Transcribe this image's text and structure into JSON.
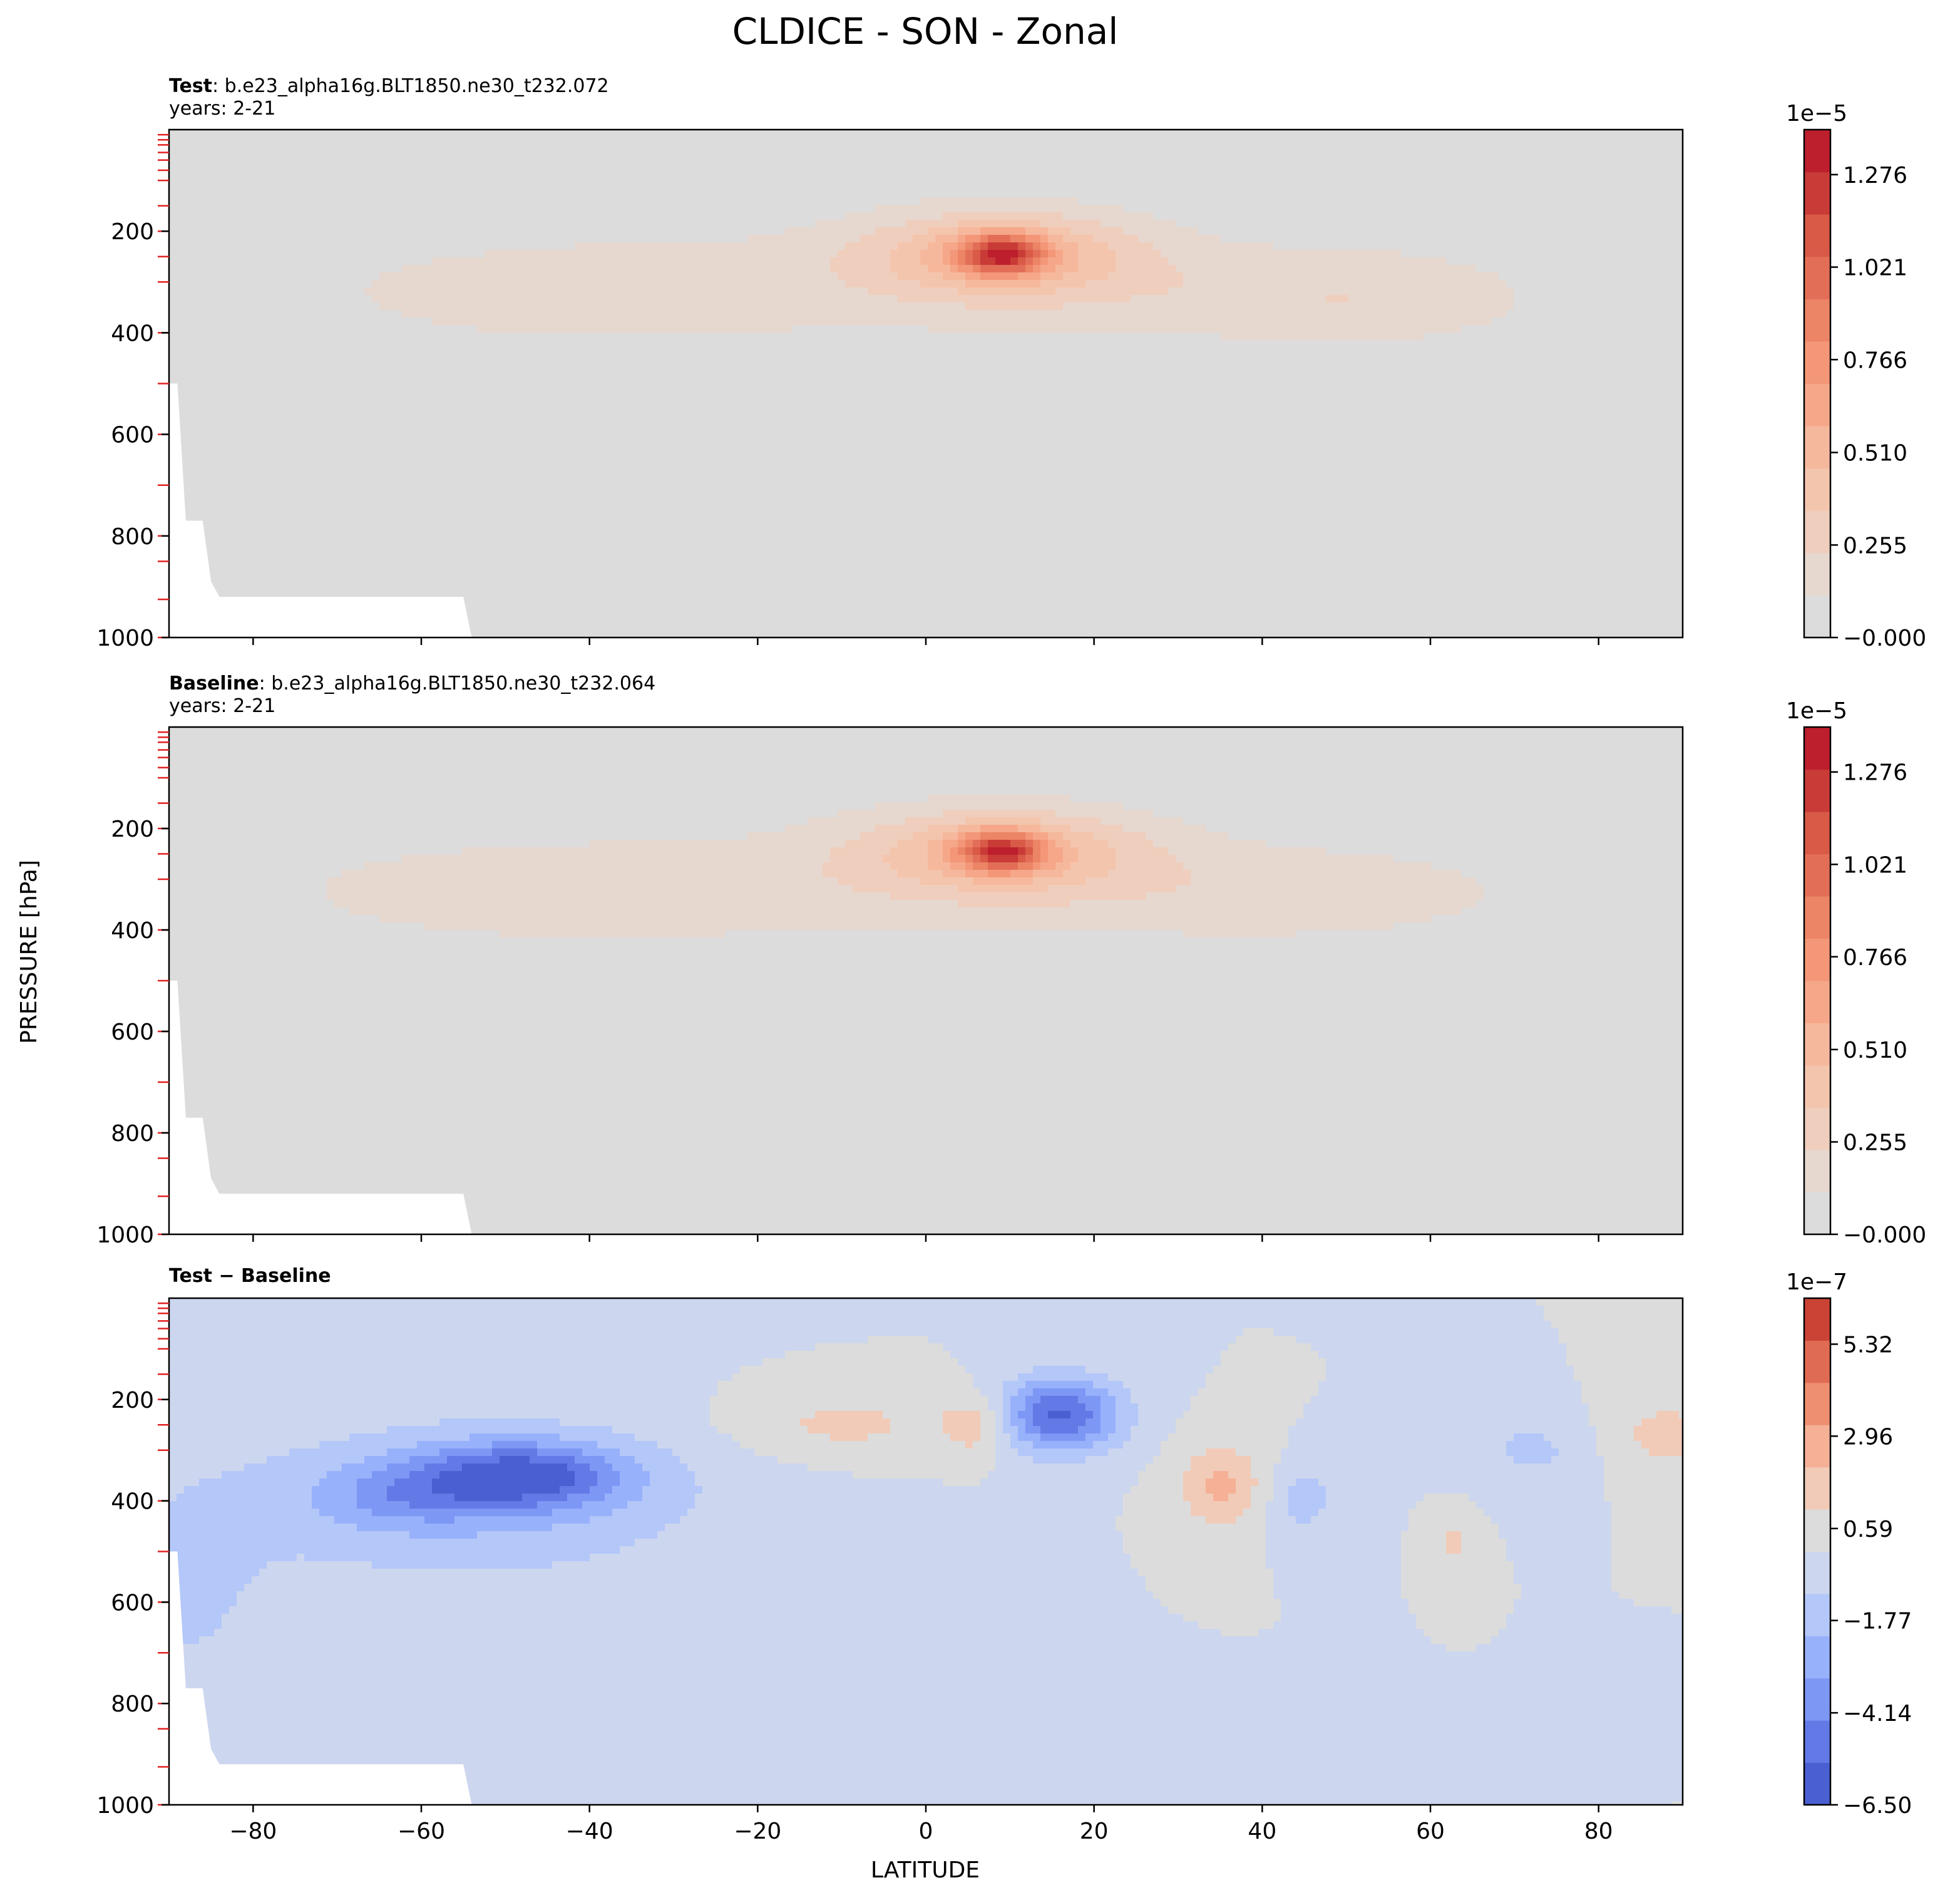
{
  "figure": {
    "title": "CLDICE - SON - Zonal",
    "ylabel": "PRESSURE [hPa]",
    "xlabel": "LATITUDE"
  },
  "chart_data": [
    {
      "type": "heatmap",
      "panel": "test",
      "title_bold": "Test",
      "title_rest": ": b.e23_alpha16g.BLT1850.ne30_t232.072",
      "subtitle": "years: 2-21",
      "xlim": [
        -90,
        90
      ],
      "ylim": [
        1000,
        0
      ],
      "x_ticks": [
        -80,
        -60,
        -40,
        -20,
        0,
        20,
        40,
        60,
        80
      ],
      "x_tick_labels": [],
      "y_ticks": [
        200,
        400,
        600,
        800,
        1000
      ],
      "y_tick_labels": [
        "200",
        "400",
        "600",
        "800",
        "1000"
      ],
      "colorbar": {
        "exponent": "1e−5",
        "vmin": 0,
        "vmax": 1.4,
        "ticks": [
          0,
          0.255,
          0.51,
          0.766,
          1.021,
          1.276
        ],
        "tick_labels": [
          "−0.000",
          "0.255",
          "0.510",
          "0.766",
          "1.021",
          "1.276"
        ],
        "colors": [
          "#dddcdc",
          "#e6d7cf",
          "#efcebd",
          "#f4c5ad",
          "#f6b89c",
          "#f6a789",
          "#f39778",
          "#ec8466",
          "#e36e57",
          "#d85a47",
          "#c93b37",
          "#bd1f2d"
        ]
      },
      "background_value": 0.02,
      "blobs": [
        {
          "lat": -12,
          "p": 300,
          "dlat": 64,
          "dp": 130,
          "amp": 0.12
        },
        {
          "lat": -42,
          "p": 330,
          "dlat": 26,
          "dp": 85,
          "amp": 0.1
        },
        {
          "lat": 45,
          "p": 330,
          "dlat": 28,
          "dp": 95,
          "amp": 0.12
        },
        {
          "lat": 55,
          "p": 340,
          "dlat": 15,
          "dp": 90,
          "amp": 0.06
        },
        {
          "lat": 9,
          "p": 245,
          "dlat": 16,
          "dp": 85,
          "amp": 0.45
        },
        {
          "lat": 9,
          "p": 245,
          "dlat": 5,
          "dp": 40,
          "amp": 0.85
        }
      ]
    },
    {
      "type": "heatmap",
      "panel": "baseline",
      "title_bold": "Baseline",
      "title_rest": ": b.e23_alpha16g.BLT1850.ne30_t232.064",
      "subtitle": "years: 2-21",
      "xlim": [
        -90,
        90
      ],
      "ylim": [
        1000,
        0
      ],
      "x_ticks": [
        -80,
        -60,
        -40,
        -20,
        0,
        20,
        40,
        60,
        80
      ],
      "x_tick_labels": [],
      "y_ticks": [
        200,
        400,
        600,
        800,
        1000
      ],
      "y_tick_labels": [
        "200",
        "400",
        "600",
        "800",
        "1000"
      ],
      "colorbar": {
        "exponent": "1e−5",
        "vmin": 0,
        "vmax": 1.4,
        "ticks": [
          0,
          0.255,
          0.51,
          0.766,
          1.021,
          1.276
        ],
        "tick_labels": [
          "−0.000",
          "0.255",
          "0.510",
          "0.766",
          "1.021",
          "1.276"
        ],
        "colors": [
          "#dddcdc",
          "#e6d7cf",
          "#efcebd",
          "#f4c5ad",
          "#f6b89c",
          "#f6a789",
          "#f39778",
          "#ec8466",
          "#e36e57",
          "#d85a47",
          "#c93b37",
          "#bd1f2d"
        ]
      },
      "background_value": 0.02,
      "blobs": [
        {
          "lat": -12,
          "p": 310,
          "dlat": 66,
          "dp": 135,
          "amp": 0.12
        },
        {
          "lat": -45,
          "p": 330,
          "dlat": 28,
          "dp": 85,
          "amp": 0.11
        },
        {
          "lat": 45,
          "p": 330,
          "dlat": 28,
          "dp": 95,
          "amp": 0.12
        },
        {
          "lat": 9,
          "p": 245,
          "dlat": 17,
          "dp": 85,
          "amp": 0.43
        },
        {
          "lat": 9,
          "p": 245,
          "dlat": 5,
          "dp": 40,
          "amp": 0.82
        }
      ]
    },
    {
      "type": "heatmap",
      "panel": "difference",
      "title_bold": "Test − Baseline",
      "xlim": [
        -90,
        90
      ],
      "ylim": [
        1000,
        0
      ],
      "x_ticks": [
        -80,
        -60,
        -40,
        -20,
        0,
        20,
        40,
        60,
        80
      ],
      "x_tick_labels": [
        "−80",
        "−60",
        "−40",
        "−20",
        "0",
        "20",
        "40",
        "60",
        "80"
      ],
      "y_ticks": [
        200,
        400,
        600,
        800,
        1000
      ],
      "y_tick_labels": [
        "200",
        "400",
        "600",
        "800",
        "1000"
      ],
      "colorbar": {
        "exponent": "1e−7",
        "vmin": -6.5,
        "vmax": 6.5,
        "ticks": [
          -6.5,
          -4.14,
          -1.77,
          0.59,
          2.96,
          5.32
        ],
        "tick_labels": [
          "−6.50",
          "−4.14",
          "−1.77",
          "0.59",
          "2.96",
          "5.32"
        ],
        "colors": [
          "#4a5fd2",
          "#6279e6",
          "#7d97f5",
          "#98b1fb",
          "#b4c7f9",
          "#ccd6ee",
          "#dcdcdc",
          "#f1cbb8",
          "#f5b096",
          "#ef8f71",
          "#e06b53",
          "#cb4335"
        ]
      },
      "background_value": 0.0,
      "blobs": [
        {
          "lat": -55,
          "p": 400,
          "dlat": 30,
          "dp": 165,
          "amp": -2.2
        },
        {
          "lat": -88,
          "p": 600,
          "dlat": 10,
          "dp": 220,
          "amp": -1.2
        },
        {
          "lat": -48,
          "p": 350,
          "dlat": 12,
          "dp": 65,
          "amp": -4.8
        },
        {
          "lat": -62,
          "p": 390,
          "dlat": 10,
          "dp": 60,
          "amp": -1.8
        },
        {
          "lat": 16,
          "p": 230,
          "dlat": 7,
          "dp": 75,
          "amp": -5.6
        },
        {
          "lat": 45,
          "p": 400,
          "dlat": 4,
          "dp": 70,
          "amp": -1.6
        },
        {
          "lat": 72,
          "p": 300,
          "dlat": 6,
          "dp": 65,
          "amp": -1.4
        },
        {
          "lat": -10,
          "p": 250,
          "dlat": 13,
          "dp": 70,
          "amp": 1.4
        },
        {
          "lat": 6,
          "p": 250,
          "dlat": 4,
          "dp": 60,
          "amp": 1.8
        },
        {
          "lat": 35,
          "p": 370,
          "dlat": 5,
          "dp": 85,
          "amp": 2.4
        },
        {
          "lat": 63,
          "p": 480,
          "dlat": 2,
          "dp": 50,
          "amp": 1.4
        },
        {
          "lat": 88,
          "p": 270,
          "dlat": 6,
          "dp": 70,
          "amp": 1.6
        }
      ]
    }
  ]
}
